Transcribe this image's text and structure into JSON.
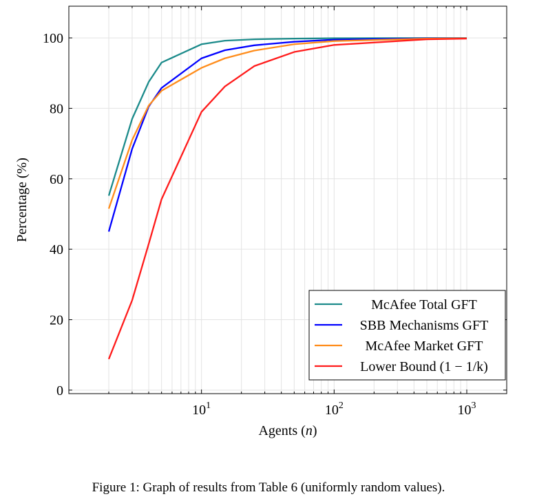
{
  "chart_data": {
    "type": "line",
    "xscale": "log",
    "xlim": [
      1,
      2000
    ],
    "ylim": [
      -1,
      109
    ],
    "xlabel": "Agents",
    "xlabel_var": "n",
    "ylabel": "Percentage",
    "ylabel_unit": "%",
    "x_ticks": [
      {
        "value": 10,
        "base": "10",
        "exp": "1"
      },
      {
        "value": 100,
        "base": "10",
        "exp": "2"
      },
      {
        "value": 1000,
        "base": "10",
        "exp": "3"
      }
    ],
    "y_ticks": [
      0,
      20,
      40,
      60,
      80,
      100
    ],
    "grid": true,
    "legend_position": "bottom-right",
    "x": [
      2,
      3,
      4,
      5,
      10,
      15,
      25,
      50,
      100,
      500,
      1000
    ],
    "series": [
      {
        "name": "McAfee Total GFT",
        "color": "#1a8a8a",
        "values": [
          55.2,
          77.0,
          87.5,
          93.0,
          98.2,
          99.2,
          99.6,
          99.8,
          99.9,
          99.95,
          99.97
        ]
      },
      {
        "name": "SBB Mechanisms GFT",
        "color": "#0000ff",
        "values": [
          45.0,
          68.5,
          80.5,
          85.8,
          94.2,
          96.5,
          97.9,
          98.9,
          99.5,
          99.85,
          99.9
        ]
      },
      {
        "name": "McAfee Market GFT",
        "color": "#ff8c1a",
        "values": [
          51.5,
          71.0,
          80.8,
          85.0,
          91.5,
          94.2,
          96.4,
          98.2,
          99.1,
          99.8,
          99.88
        ]
      },
      {
        "name": "Lower Bound (1 − 1/k)",
        "color": "#ff1a1a",
        "values": [
          8.8,
          25.5,
          41.5,
          54.2,
          79.0,
          86.2,
          92.0,
          96.0,
          98.0,
          99.6,
          99.8
        ]
      }
    ]
  },
  "caption": "Figure 1: Graph of results from Table 6 (uniformly random values)."
}
